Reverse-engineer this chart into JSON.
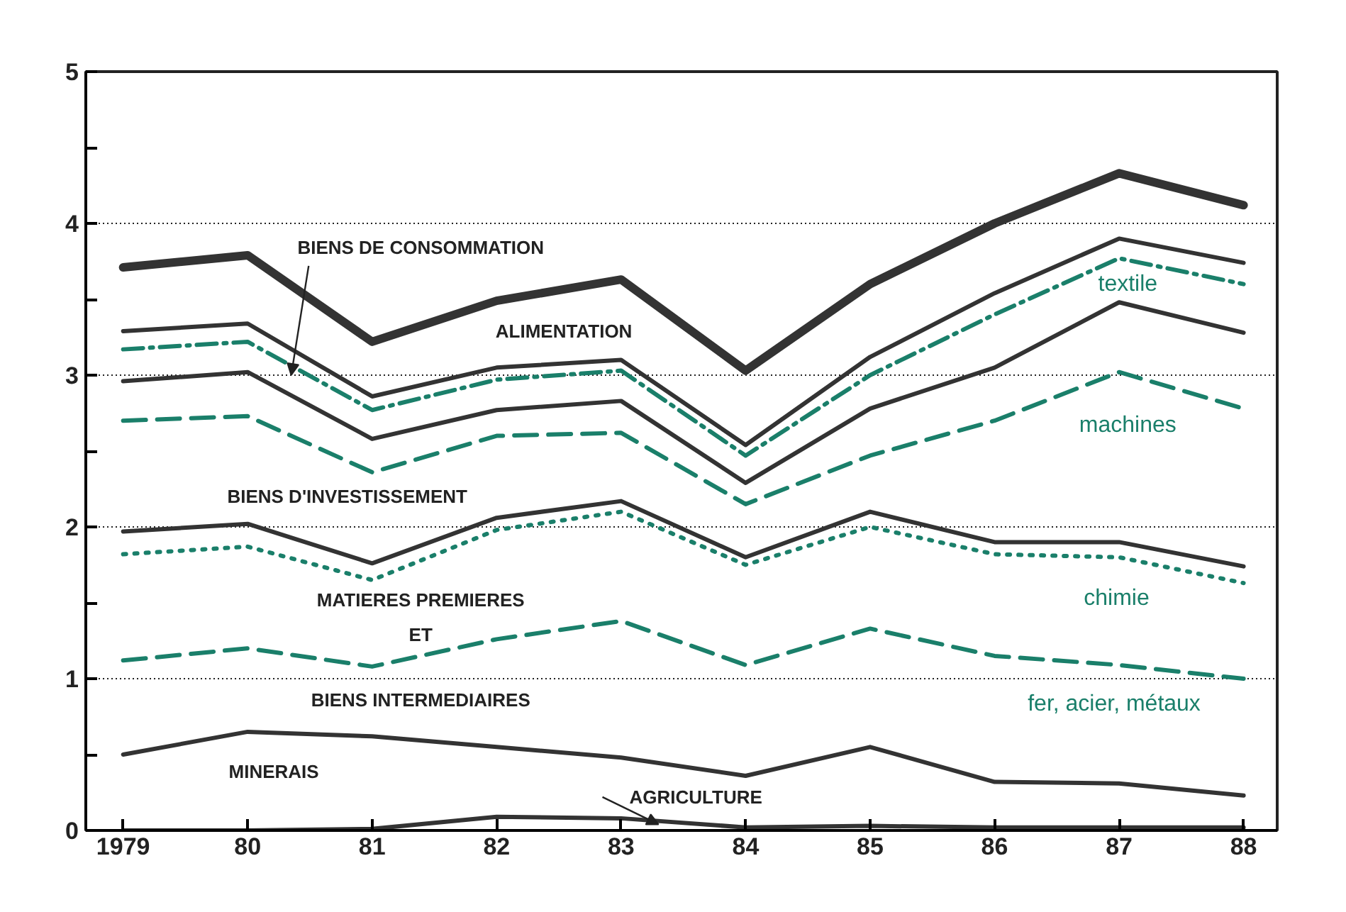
{
  "chart_data": {
    "type": "line",
    "x": [
      1979,
      1980,
      1981,
      1982,
      1983,
      1984,
      1985,
      1986,
      1987,
      1988
    ],
    "xlim": [
      1978.7,
      1988.27
    ],
    "xticks": [
      {
        "value": 1979,
        "label": "1979"
      },
      {
        "value": 1980,
        "label": "80"
      },
      {
        "value": 1981,
        "label": "81"
      },
      {
        "value": 1982,
        "label": "82"
      },
      {
        "value": 1983,
        "label": "83"
      },
      {
        "value": 1984,
        "label": "84"
      },
      {
        "value": 1985,
        "label": "85"
      },
      {
        "value": 1986,
        "label": "86"
      },
      {
        "value": 1987,
        "label": "87"
      },
      {
        "value": 1988,
        "label": "88"
      }
    ],
    "ylim": [
      0,
      5
    ],
    "yticks": [
      0,
      {
        "value": 0.5,
        "label": null
      },
      1,
      {
        "value": 1.5,
        "label": null
      },
      2,
      {
        "value": 2.5,
        "label": null
      },
      3,
      {
        "value": 3.5,
        "label": null
      },
      4,
      {
        "value": 4.5,
        "label": null
      },
      5
    ],
    "grid": "y",
    "series": [
      {
        "color": "#333333",
        "line_style": "solid",
        "values": [
          3.71,
          3.79,
          3.22,
          3.49,
          3.63,
          3.03,
          3.6,
          4.0,
          4.33,
          4.12
        ]
      },
      {
        "color": "#333333",
        "line_style": "solid",
        "values": [
          3.29,
          3.34,
          2.86,
          3.05,
          3.1,
          2.54,
          3.12,
          3.54,
          3.9,
          3.74
        ]
      },
      {
        "color": "#1a7f6a",
        "line_style": "dashdot",
        "values": [
          3.17,
          3.22,
          2.77,
          2.97,
          3.03,
          2.47,
          3.0,
          3.4,
          3.77,
          3.6
        ]
      },
      {
        "color": "#333333",
        "line_style": "solid",
        "values": [
          2.96,
          3.02,
          2.58,
          2.77,
          2.83,
          2.29,
          2.78,
          3.05,
          3.48,
          3.28
        ]
      },
      {
        "color": "#1a7f6a",
        "line_style": "dashed",
        "values": [
          2.7,
          2.73,
          2.36,
          2.6,
          2.62,
          2.15,
          2.47,
          2.7,
          3.02,
          2.78
        ]
      },
      {
        "color": "#333333",
        "line_style": "solid",
        "values": [
          1.97,
          2.02,
          1.76,
          2.06,
          2.17,
          1.8,
          2.1,
          1.9,
          1.9,
          1.74
        ]
      },
      {
        "color": "#1a7f6a",
        "line_style": "dotted",
        "values": [
          1.82,
          1.87,
          1.65,
          1.98,
          2.1,
          1.75,
          2.0,
          1.82,
          1.8,
          1.63
        ]
      },
      {
        "color": "#1a7f6a",
        "line_style": "dashed",
        "values": [
          1.12,
          1.2,
          1.08,
          1.26,
          1.38,
          1.09,
          1.33,
          1.15,
          1.09,
          1.0
        ]
      },
      {
        "color": "#333333",
        "line_style": "solid",
        "values": [
          0.5,
          0.65,
          0.62,
          0.55,
          0.48,
          0.36,
          0.55,
          0.32,
          0.31,
          0.23
        ]
      },
      {
        "color": "#333333",
        "line_style": "solid",
        "values": [
          0.0,
          0.0,
          0.01,
          0.09,
          0.08,
          0.02,
          0.03,
          0.02,
          0.02,
          0.02
        ]
      }
    ],
    "annotations": [
      "BIENS DE CONSOMMATION",
      "ALIMENTATION",
      "textile",
      "BIENS D'INVESTISSEMENT",
      "machines",
      "MATIERES PREMIERES",
      "ET",
      "BIENS INTERMEDIAIRES",
      "chimie",
      "fer, acier, métaux",
      "MINERAIS",
      "AGRICULTURE"
    ]
  }
}
